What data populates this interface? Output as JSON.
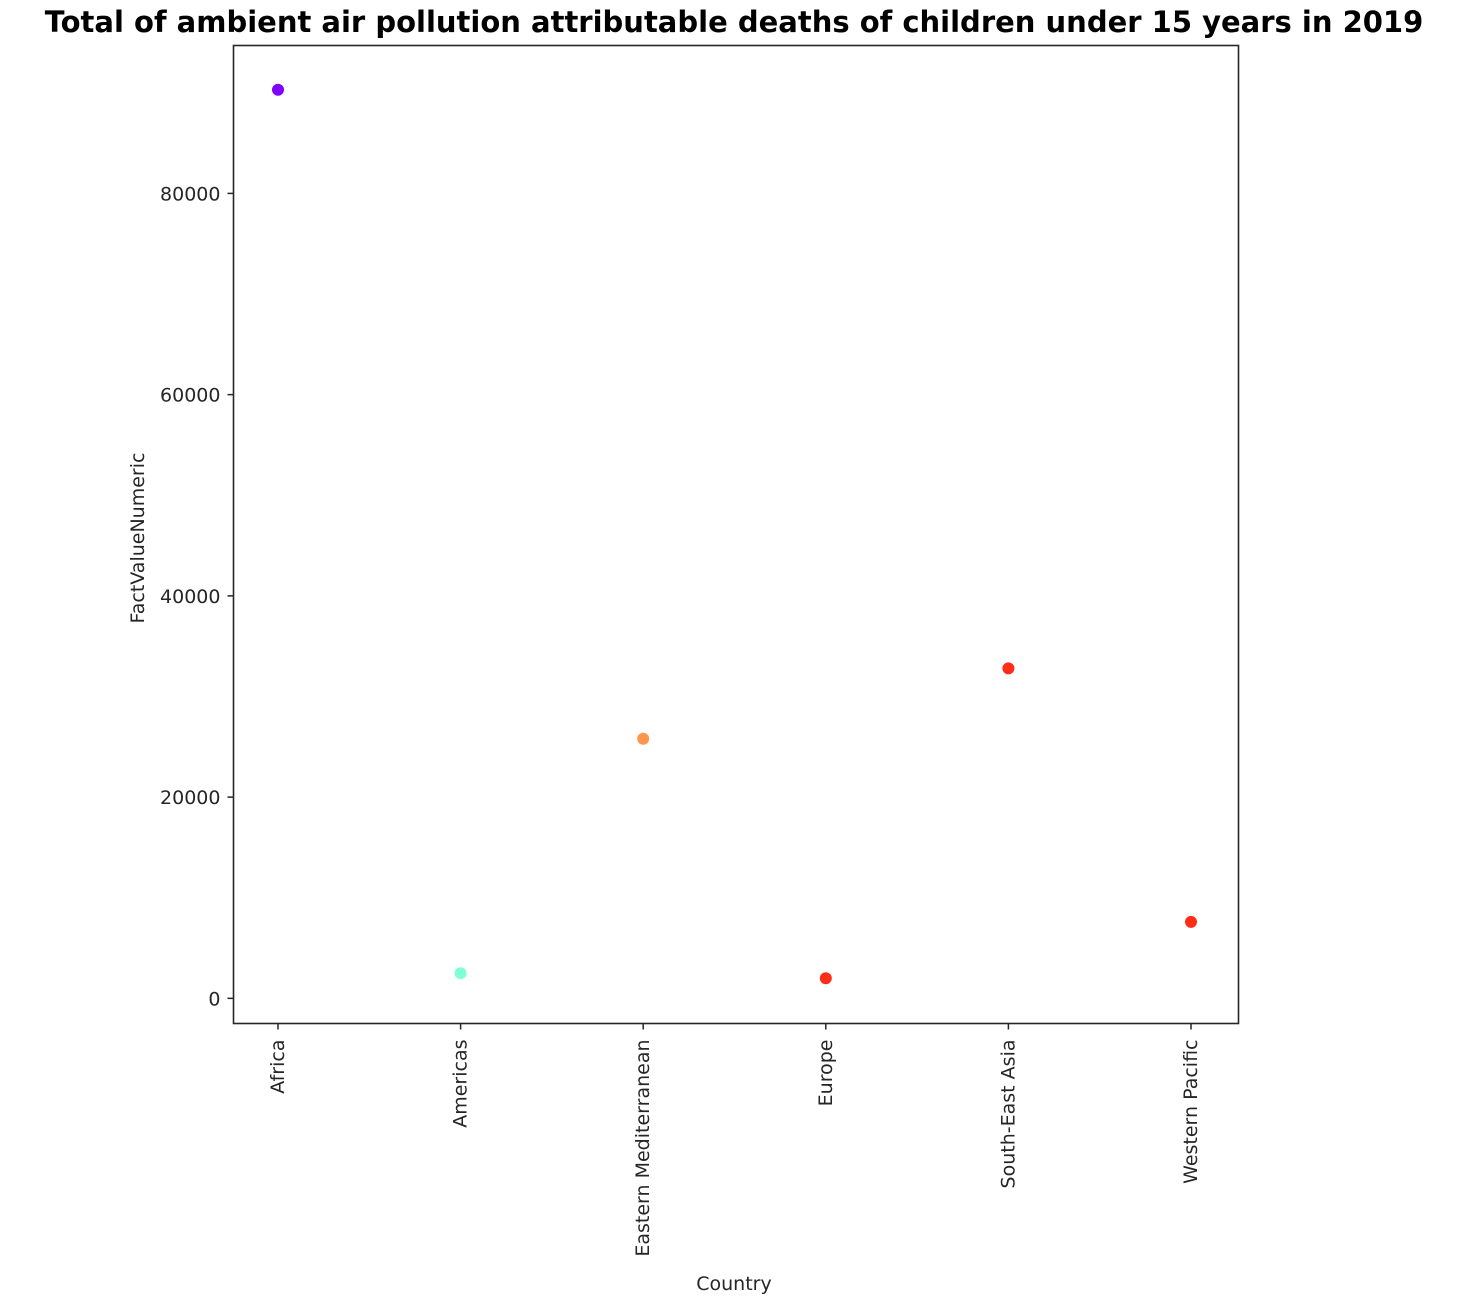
{
  "chart_data": {
    "type": "scatter",
    "title": "Total of ambient air pollution attributable deaths of children under 15 years in 2019",
    "xlabel": "Country",
    "ylabel": "FactValueNumeric",
    "categories": [
      "Africa",
      "Americas",
      "Eastern Mediterranean",
      "Europe",
      "South-East Asia",
      "Western Pacific"
    ],
    "values": [
      90300,
      2500,
      25800,
      2000,
      32800,
      7600
    ],
    "colors": [
      "#8000ff",
      "#80ffd4",
      "#ff964f",
      "#ff2c16",
      "#ff2c16",
      "#ff2c16"
    ],
    "yticks": [
      0,
      20000,
      40000,
      60000,
      80000
    ],
    "ylim": [
      -2500,
      94700
    ],
    "grid": false,
    "legend": "none"
  }
}
